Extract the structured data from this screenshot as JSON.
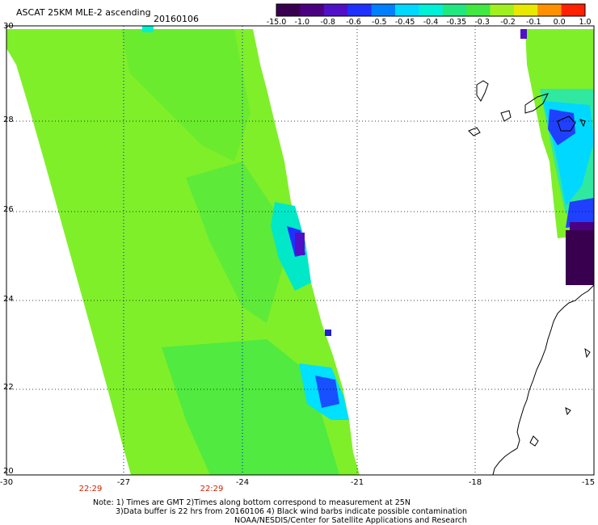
{
  "title": "ASCAT 25KM MLE-2 ascending",
  "date": "20160106",
  "colorbar": {
    "labels": [
      "-15.0",
      "-1.0",
      "-0.8",
      "-0.6",
      "-0.5",
      "-0.45",
      "-0.4",
      "-0.35",
      "-0.3",
      "-0.2",
      "-0.1",
      "0.0",
      "1.0"
    ],
    "colors": [
      "#3a0050",
      "#4b0082",
      "#5010c8",
      "#2030ff",
      "#0080ff",
      "#00d8ff",
      "#00f0d8",
      "#20e880",
      "#40e840",
      "#a0f020",
      "#e8e800",
      "#ff9000",
      "#ff2000"
    ]
  },
  "x_axis": {
    "labels": [
      "-30",
      "-27",
      "-24",
      "-21",
      "-18",
      "-15"
    ]
  },
  "y_axis": {
    "labels": [
      "30",
      "28",
      "26",
      "24",
      "22",
      "20"
    ]
  },
  "pass_times": [
    "22:29",
    "22:29"
  ],
  "note": {
    "line1": "Note: 1) Times are GMT 2)Times along bottom correspond to measurement at 25N",
    "line2": "3)Data buffer is 22 hrs from 20160106 4) Black wind barbs indicate possible contamination",
    "line3": "NOAA/NESDIS/Center for Satellite Applications and Research"
  },
  "colors": {
    "swath_main": "#7fef2a",
    "swath_green": "#40e860",
    "time_label": "#cc2200",
    "grid": "#000000"
  }
}
